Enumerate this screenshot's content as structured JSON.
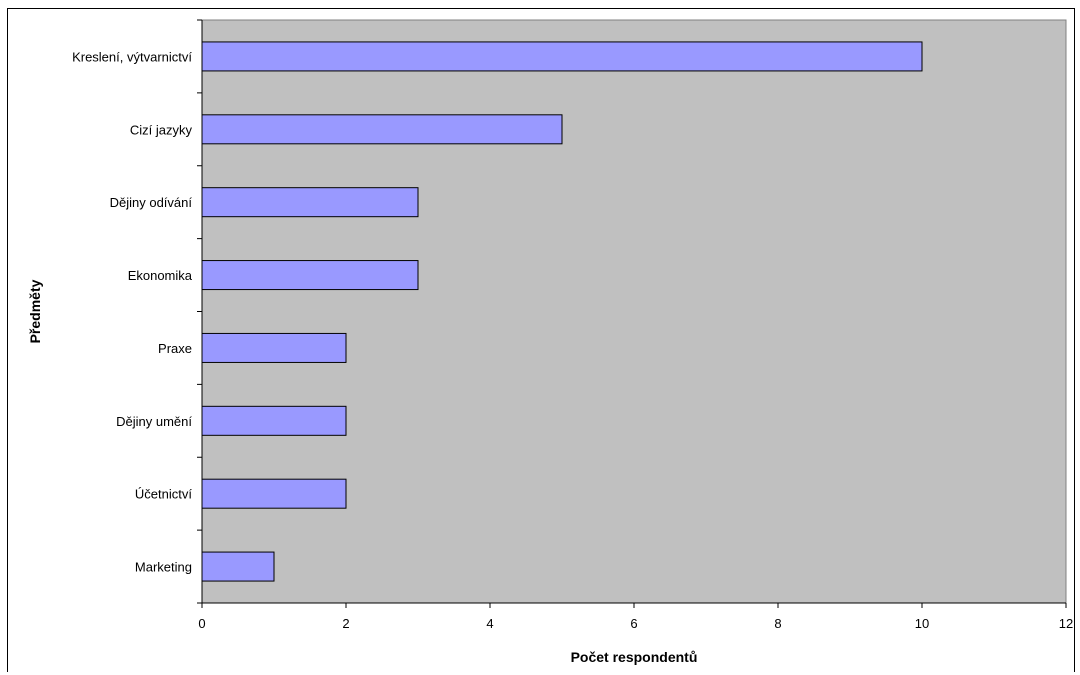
{
  "chart_data": {
    "type": "bar",
    "orientation": "horizontal",
    "categories": [
      "Kreslení, výtvarnictví",
      "Cizí jazyky",
      "Dějiny odívání",
      "Ekonomika",
      "Praxe",
      "Dějiny umění",
      "Účetnictví",
      "Marketing"
    ],
    "values": [
      10,
      5,
      3,
      3,
      2,
      2,
      2,
      1
    ],
    "xlabel": "Počet respondentů",
    "ylabel": "Předměty",
    "xlim": [
      0,
      12
    ],
    "xticks": [
      "0",
      "2",
      "4",
      "6",
      "8",
      "10",
      "12"
    ],
    "grid": false,
    "legend": "none",
    "colors": {
      "plot_background": "#c0c0c0",
      "bar_fill": "#9999ff",
      "bar_stroke": "#000000"
    }
  }
}
